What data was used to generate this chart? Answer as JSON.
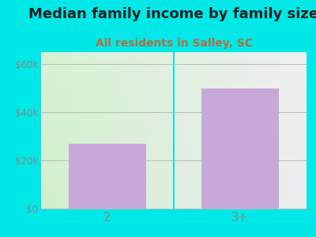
{
  "title": "Median family income by family size",
  "subtitle": "All residents in Salley, SC",
  "categories": [
    "2",
    "3+"
  ],
  "values": [
    27000,
    50000
  ],
  "bar_color": "#c8a8d8",
  "title_fontsize": 13,
  "subtitle_fontsize": 10,
  "title_color": "#222222",
  "subtitle_color": "#b07040",
  "ylabel_ticks": [
    0,
    20000,
    40000,
    60000
  ],
  "ylabel_labels": [
    "$0",
    "$20k",
    "$40k",
    "$60k"
  ],
  "ylim": [
    0,
    65000
  ],
  "background_outer": "#00e8e8",
  "grid_color": "#bbbbbb",
  "tick_color": "#888888",
  "divider_color": "#00e8e8"
}
